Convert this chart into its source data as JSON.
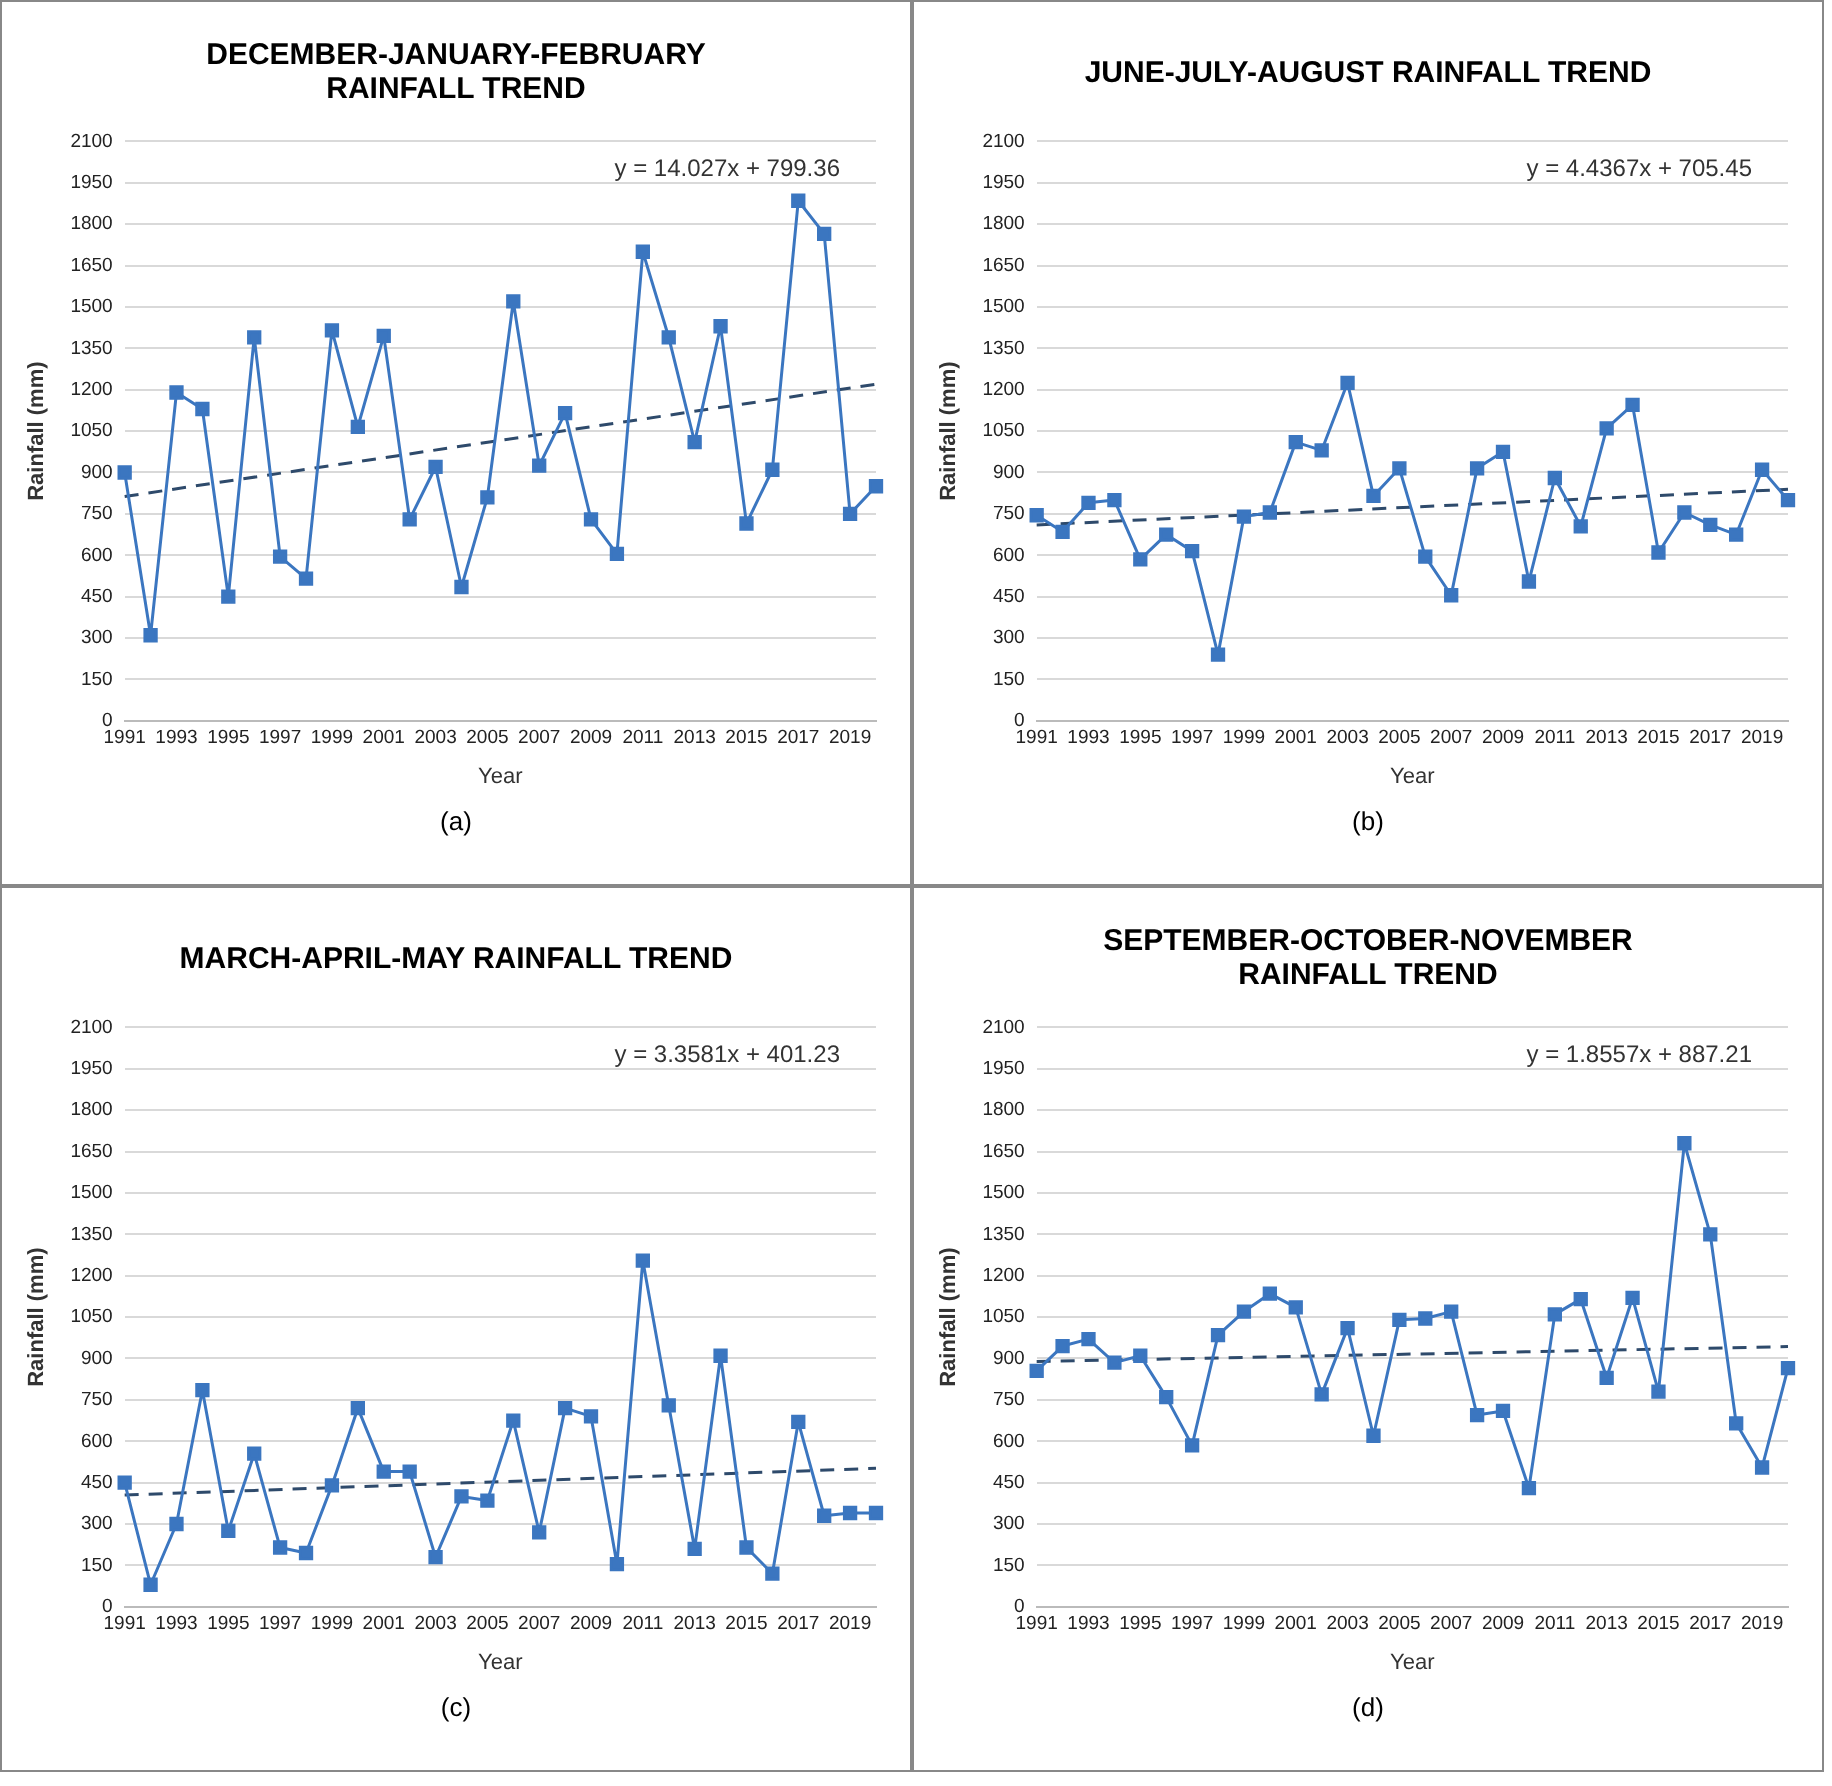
{
  "chart_data": [
    {
      "type": "line",
      "title": "DECEMBER-JANUARY-FEBRUARY RAINFALL TREND",
      "xlabel": "Year",
      "ylabel": "Rainfall (mm)",
      "categories": [
        "1991",
        null,
        "1993",
        null,
        "1995",
        null,
        "1997",
        null,
        "1999",
        null,
        "2001",
        null,
        "2003",
        null,
        "2005",
        null,
        "2007",
        null,
        "2009",
        null,
        "2011",
        null,
        "2013",
        null,
        "2015",
        null,
        "2017",
        null,
        "2019",
        null
      ],
      "ylim": [
        0,
        2100
      ],
      "yticks": [
        0,
        150,
        300,
        450,
        600,
        750,
        900,
        1050,
        1200,
        1350,
        1500,
        1650,
        1800,
        1950,
        2100
      ],
      "grid": "y",
      "legend": false,
      "annotations": [
        "y = 14.027x + 799.36",
        "(a)"
      ],
      "series": [
        {
          "color": "#3b76c0",
          "marker": "square",
          "values": [
            900,
            310,
            1190,
            1130,
            450,
            1390,
            595,
            515,
            1415,
            1065,
            1395,
            730,
            920,
            485,
            810,
            1520,
            925,
            1115,
            730,
            605,
            1700,
            1390,
            1010,
            1430,
            715,
            910,
            1885,
            1765,
            750,
            850
          ]
        },
        {
          "type": "line",
          "color": "#2e4a6b",
          "marker": "none",
          "line_style": "dashed",
          "values": [
            813,
            null,
            null,
            null,
            null,
            null,
            null,
            null,
            null,
            null,
            null,
            null,
            null,
            null,
            null,
            null,
            null,
            null,
            null,
            null,
            null,
            null,
            null,
            null,
            null,
            null,
            null,
            null,
            null,
            1220
          ]
        }
      ]
    },
    {
      "type": "line",
      "title": "JUNE-JULY-AUGUST RAINFALL TREND",
      "xlabel": "Year",
      "ylabel": "Rainfall (mm)",
      "categories": [
        "1991",
        null,
        "1993",
        null,
        "1995",
        null,
        "1997",
        null,
        "1999",
        null,
        "2001",
        null,
        "2003",
        null,
        "2005",
        null,
        "2007",
        null,
        "2009",
        null,
        "2011",
        null,
        "2013",
        null,
        "2015",
        null,
        "2017",
        null,
        "2019",
        null
      ],
      "ylim": [
        0,
        2100
      ],
      "yticks": [
        0,
        150,
        300,
        450,
        600,
        750,
        900,
        1050,
        1200,
        1350,
        1500,
        1650,
        1800,
        1950,
        2100
      ],
      "grid": "y",
      "legend": false,
      "annotations": [
        "y = 4.4367x + 705.45",
        "(b)"
      ],
      "series": [
        {
          "color": "#3b76c0",
          "marker": "square",
          "values": [
            745,
            685,
            790,
            800,
            585,
            675,
            615,
            240,
            740,
            755,
            1010,
            980,
            1225,
            815,
            915,
            595,
            455,
            915,
            975,
            505,
            880,
            705,
            1060,
            1145,
            610,
            755,
            710,
            675,
            910,
            800
          ]
        },
        {
          "type": "line",
          "color": "#2e4a6b",
          "marker": "none",
          "line_style": "dashed",
          "values": [
            710,
            null,
            null,
            null,
            null,
            null,
            null,
            null,
            null,
            null,
            null,
            null,
            null,
            null,
            null,
            null,
            null,
            null,
            null,
            null,
            null,
            null,
            null,
            null,
            null,
            null,
            null,
            null,
            null,
            839
          ]
        }
      ]
    },
    {
      "type": "line",
      "title": "MARCH-APRIL-MAY RAINFALL TREND",
      "xlabel": "Year",
      "ylabel": "Rainfall (mm)",
      "categories": [
        "1991",
        null,
        "1993",
        null,
        "1995",
        null,
        "1997",
        null,
        "1999",
        null,
        "2001",
        null,
        "2003",
        null,
        "2005",
        null,
        "2007",
        null,
        "2009",
        null,
        "2011",
        null,
        "2013",
        null,
        "2015",
        null,
        "2017",
        null,
        "2019",
        null
      ],
      "ylim": [
        0,
        2100
      ],
      "yticks": [
        0,
        150,
        300,
        450,
        600,
        750,
        900,
        1050,
        1200,
        1350,
        1500,
        1650,
        1800,
        1950,
        2100
      ],
      "grid": "y",
      "legend": false,
      "annotations": [
        "y = 3.3581x + 401.23",
        "(c)"
      ],
      "series": [
        {
          "color": "#3b76c0",
          "marker": "square",
          "values": [
            450,
            80,
            300,
            785,
            275,
            555,
            215,
            195,
            440,
            720,
            490,
            490,
            180,
            400,
            385,
            675,
            270,
            720,
            690,
            155,
            1255,
            730,
            210,
            910,
            215,
            120,
            670,
            330,
            340,
            340
          ]
        },
        {
          "type": "line",
          "color": "#2e4a6b",
          "marker": "none",
          "line_style": "dashed",
          "values": [
            405,
            null,
            null,
            null,
            null,
            null,
            null,
            null,
            null,
            null,
            null,
            null,
            null,
            null,
            null,
            null,
            null,
            null,
            null,
            null,
            null,
            null,
            null,
            null,
            null,
            null,
            null,
            null,
            null,
            502
          ]
        }
      ]
    },
    {
      "type": "line",
      "title": "SEPTEMBER-OCTOBER-NOVEMBER RAINFALL TREND",
      "xlabel": "Year",
      "ylabel": "Rainfall (mm)",
      "categories": [
        "1991",
        null,
        "1993",
        null,
        "1995",
        null,
        "1997",
        null,
        "1999",
        null,
        "2001",
        null,
        "2003",
        null,
        "2005",
        null,
        "2007",
        null,
        "2009",
        null,
        "2011",
        null,
        "2013",
        null,
        "2015",
        null,
        "2017",
        null,
        "2019",
        null
      ],
      "ylim": [
        0,
        2100
      ],
      "yticks": [
        0,
        150,
        300,
        450,
        600,
        750,
        900,
        1050,
        1200,
        1350,
        1500,
        1650,
        1800,
        1950,
        2100
      ],
      "grid": "y",
      "legend": false,
      "annotations": [
        "y = 1.8557x + 887.21",
        "(d)"
      ],
      "series": [
        {
          "color": "#3b76c0",
          "marker": "square",
          "values": [
            855,
            945,
            970,
            885,
            910,
            760,
            585,
            985,
            1070,
            1135,
            1085,
            770,
            1010,
            620,
            1040,
            1045,
            1070,
            695,
            710,
            430,
            1060,
            1115,
            830,
            1120,
            780,
            1680,
            1350,
            665,
            505,
            865
          ]
        },
        {
          "type": "line",
          "color": "#2e4a6b",
          "marker": "none",
          "line_style": "dashed",
          "values": [
            889,
            null,
            null,
            null,
            null,
            null,
            null,
            null,
            null,
            null,
            null,
            null,
            null,
            null,
            null,
            null,
            null,
            null,
            null,
            null,
            null,
            null,
            null,
            null,
            null,
            null,
            null,
            null,
            null,
            943
          ]
        }
      ]
    }
  ]
}
